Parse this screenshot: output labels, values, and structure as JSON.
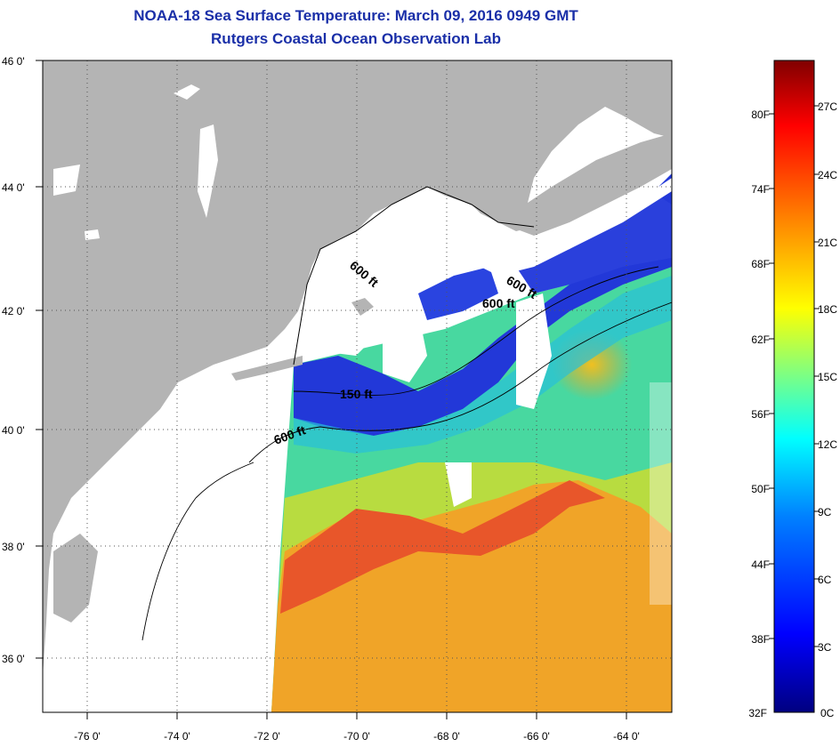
{
  "title": {
    "line1": "NOAA-18 Sea Surface Temperature:  March 09, 2016 0949 GMT",
    "line2": "Rutgers Coastal Ocean Observation Lab"
  },
  "map": {
    "lat_ticks": [
      "46 0'",
      "44 0'",
      "42 0'",
      "40 0'",
      "38 0'",
      "36 0'"
    ],
    "lon_ticks": [
      "-76 0'",
      "-74 0'",
      "-72 0'",
      "-70 0'",
      "-68 0'",
      "-66 0'",
      "-64 0'"
    ],
    "lat_range": [
      35,
      46
    ],
    "lon_range": [
      -77,
      -63
    ],
    "isobaths": [
      "600 ft",
      "600 ft",
      "600 ft",
      "150 ft",
      "600 ft"
    ],
    "colors": {
      "land": "#b4b4b4",
      "cloud": "#ffffff",
      "cold": "#1b2fd8",
      "mid": "#2ad4c8",
      "warm": "#f07a18",
      "hot": "#e8482a"
    }
  },
  "colorbar": {
    "fahrenheit": [
      "80F",
      "74F",
      "68F",
      "62F",
      "56F",
      "50F",
      "44F",
      "38F",
      "32F"
    ],
    "celsius": [
      "27C",
      "24C",
      "21C",
      "18C",
      "15C",
      "12C",
      "9C",
      "6C",
      "3C",
      "0C"
    ],
    "range_c": [
      0,
      28.5
    ],
    "stops": [
      "#000080",
      "#0000ff",
      "#0080ff",
      "#00ffff",
      "#80ff80",
      "#ffff00",
      "#ff8000",
      "#ff0000",
      "#800000"
    ]
  }
}
